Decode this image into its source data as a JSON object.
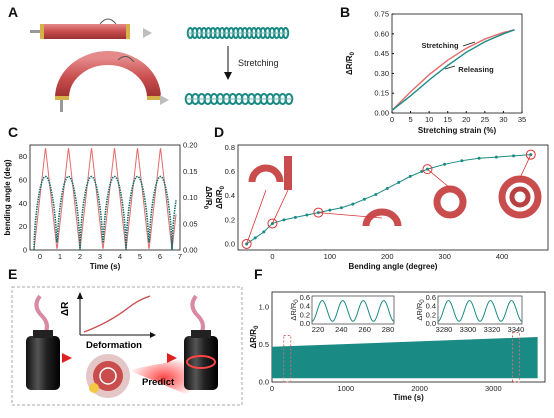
{
  "panels": {
    "A": {
      "letter": "A",
      "arrow_text": "Stretching"
    },
    "B": {
      "letter": "B"
    },
    "C": {
      "letter": "C"
    },
    "D": {
      "letter": "D"
    },
    "E": {
      "letter": "E",
      "axis_y": "ΔR",
      "deformation": "Deformation",
      "predict": "Predict"
    },
    "F": {
      "letter": "F"
    }
  },
  "colors": {
    "red": "#e36b6b",
    "teal": "#1a8a84",
    "dark_teal": "#0f6f6a",
    "bar": "#c94d4d",
    "cap": "#d7b24a"
  },
  "chart_data": [
    {
      "panel": "B",
      "type": "line",
      "xlabel": "Stretching strain (%)",
      "ylabel": "ΔR/R0",
      "xlim": [
        0,
        35
      ],
      "ylim": [
        0,
        0.75
      ],
      "xticks": [
        "0",
        "5",
        "10",
        "15",
        "20",
        "25",
        "30",
        "35"
      ],
      "yticks": [
        "0.00",
        "0.15",
        "0.30",
        "0.45",
        "0.60",
        "0.75"
      ],
      "series": [
        {
          "name": "Stretching",
          "color": "#e36b6b",
          "x": [
            0,
            5,
            10,
            15,
            20,
            25,
            30,
            33
          ],
          "y": [
            0.02,
            0.16,
            0.29,
            0.4,
            0.49,
            0.56,
            0.61,
            0.63
          ]
        },
        {
          "name": "Releasing",
          "color": "#1a8a84",
          "x": [
            0,
            5,
            10,
            15,
            20,
            25,
            30,
            33
          ],
          "y": [
            0.02,
            0.13,
            0.25,
            0.36,
            0.46,
            0.54,
            0.6,
            0.63
          ]
        }
      ]
    },
    {
      "panel": "C",
      "type": "line",
      "xlabel": "Time (s)",
      "ylabel_left": "bending angle (deg)",
      "ylabel_right": "ΔR/R0",
      "xlim": [
        -0.5,
        7
      ],
      "ylim_left": [
        0,
        90
      ],
      "ylim_right": [
        0,
        0.2
      ],
      "xticks": [
        "0",
        "1",
        "2",
        "3",
        "4",
        "5",
        "6",
        "7"
      ],
      "yticks_left": [
        "0",
        "20",
        "40",
        "60",
        "80"
      ],
      "yticks_right": [
        "0.00",
        "0.05",
        "0.10",
        "0.15",
        "0.20"
      ],
      "period_s": 1.15,
      "bending_peak_deg": 88,
      "resistance_peak": 0.14
    },
    {
      "panel": "D",
      "type": "line",
      "xlabel": "Bending angle (degree)",
      "ylabel": "ΔR/R0",
      "xlim": [
        -60,
        480
      ],
      "ylim": [
        -0.05,
        0.82
      ],
      "xticks": [
        "0",
        "100",
        "200",
        "300",
        "400"
      ],
      "yticks": [
        "0.0",
        "0.2",
        "0.4",
        "0.6",
        "0.8"
      ],
      "x": [
        -45,
        -30,
        -15,
        0,
        20,
        40,
        60,
        80,
        100,
        120,
        140,
        160,
        180,
        200,
        220,
        240,
        260,
        270,
        300,
        330,
        360,
        390,
        420,
        450
      ],
      "y": [
        0.0,
        0.05,
        0.1,
        0.17,
        0.2,
        0.22,
        0.24,
        0.26,
        0.28,
        0.3,
        0.33,
        0.37,
        0.41,
        0.46,
        0.51,
        0.56,
        0.6,
        0.62,
        0.66,
        0.69,
        0.71,
        0.72,
        0.73,
        0.74
      ],
      "highlight_x": [
        -45,
        0,
        80,
        270,
        450
      ]
    },
    {
      "panel": "F",
      "type": "area",
      "xlabel": "Time (s)",
      "ylabel": "ΔR/R0",
      "xlim": [
        0,
        3700
      ],
      "ylim": [
        0,
        1.2
      ],
      "xticks": [
        "0",
        "1000",
        "2000",
        "3000"
      ],
      "yticks": [
        "0.0",
        "0.5",
        "1.0"
      ],
      "band_low": 0.05,
      "band_high_start": 0.47,
      "band_high_end": 0.6,
      "insets": [
        {
          "ylabel": "ΔR/R0",
          "xticks": [
            "220",
            "240",
            "260",
            "280"
          ],
          "yticks": [
            "0.0",
            "0.2",
            "0.4",
            "0.6"
          ],
          "xlim": [
            210,
            285
          ]
        },
        {
          "ylabel": "ΔR/R0",
          "xticks": [
            "3280",
            "3300",
            "3320",
            "3340"
          ],
          "yticks": [
            "0.0",
            "0.2",
            "0.4",
            "0.6"
          ],
          "xlim": [
            3270,
            3345
          ]
        }
      ]
    }
  ]
}
